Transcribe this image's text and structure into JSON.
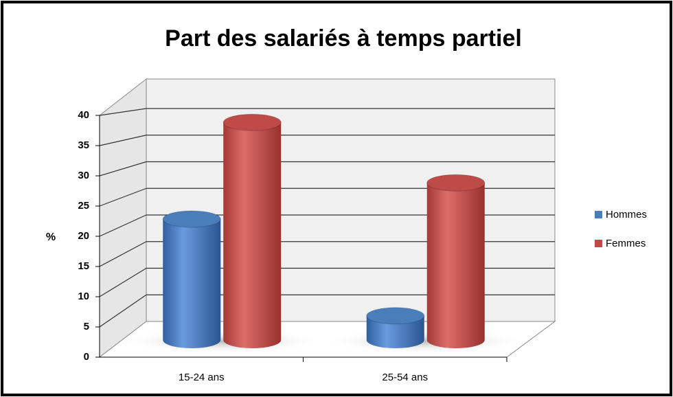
{
  "chart_data": {
    "type": "bar3d",
    "title": "Part des salariés à temps partiel",
    "y_label": "%",
    "categories": [
      "15-24 ans",
      "25-54 ans"
    ],
    "series": [
      {
        "name": "Hommes",
        "color": "#4a7ebb",
        "values": [
          20,
          4
        ]
      },
      {
        "name": "Femmes",
        "color": "#be4b48",
        "values": [
          36,
          26
        ]
      }
    ],
    "ylim": [
      0,
      40
    ],
    "yticks": [
      0,
      5,
      10,
      15,
      20,
      25,
      30,
      35,
      40
    ],
    "grid": true,
    "legend": "right"
  }
}
